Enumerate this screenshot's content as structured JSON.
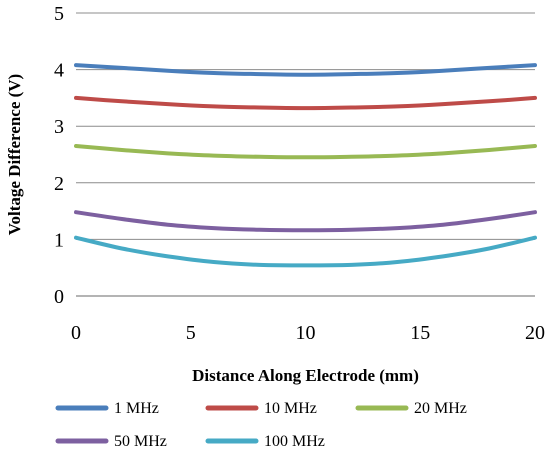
{
  "chart_data": {
    "type": "line",
    "xlabel": "Distance Along Electrode (mm)",
    "ylabel": "Voltage Difference (V)",
    "xlim": [
      0,
      20
    ],
    "ylim": [
      0,
      5
    ],
    "xticks": [
      0,
      5,
      10,
      15,
      20
    ],
    "yticks": [
      0,
      1,
      2,
      3,
      4,
      5
    ],
    "grid": "horizontal",
    "legend_position": "bottom",
    "x": [
      0,
      2,
      4,
      6,
      8,
      10,
      12,
      14,
      16,
      18,
      20
    ],
    "series": [
      {
        "name": "1 MHz",
        "color": "#4a7ebb",
        "values": [
          4.08,
          4.03,
          3.98,
          3.94,
          3.92,
          3.91,
          3.92,
          3.94,
          3.98,
          4.03,
          4.08
        ]
      },
      {
        "name": "10 MHz",
        "color": "#be4b48",
        "values": [
          3.5,
          3.44,
          3.39,
          3.35,
          3.33,
          3.32,
          3.33,
          3.35,
          3.39,
          3.44,
          3.5
        ]
      },
      {
        "name": "20 MHz",
        "color": "#98b954",
        "values": [
          2.65,
          2.58,
          2.52,
          2.48,
          2.46,
          2.45,
          2.46,
          2.48,
          2.52,
          2.58,
          2.65
        ]
      },
      {
        "name": "50 MHz",
        "color": "#7d60a0",
        "values": [
          1.48,
          1.36,
          1.26,
          1.2,
          1.17,
          1.16,
          1.17,
          1.2,
          1.26,
          1.36,
          1.48
        ]
      },
      {
        "name": "100 MHz",
        "color": "#46aac5",
        "values": [
          1.03,
          0.84,
          0.7,
          0.6,
          0.55,
          0.54,
          0.55,
          0.6,
          0.7,
          0.84,
          1.03
        ]
      }
    ]
  }
}
